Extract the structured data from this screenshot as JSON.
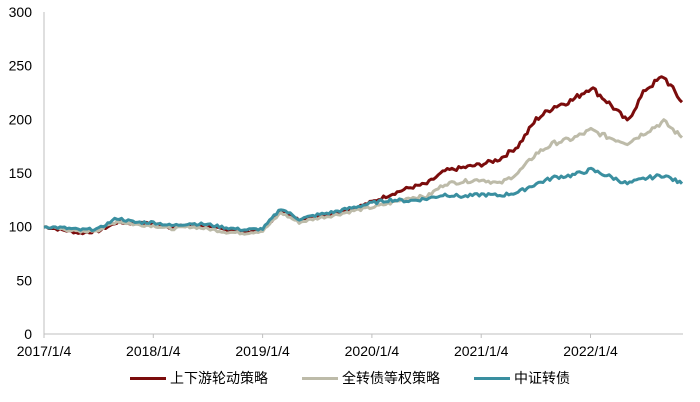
{
  "chart_data": {
    "type": "line",
    "title": "",
    "xlabel": "",
    "ylabel": "",
    "ylim": [
      0,
      300
    ],
    "yticks": [
      0,
      50,
      100,
      150,
      200,
      250,
      300
    ],
    "xtick_labels": [
      "2017/1/4",
      "2018/1/4",
      "2019/1/4",
      "2020/1/4",
      "2021/1/4",
      "2022/1/4"
    ],
    "grid": false,
    "legend_position": "bottom",
    "x": [
      "2017/01",
      "2017/03",
      "2017/05",
      "2017/07",
      "2017/09",
      "2017/11",
      "2018/01",
      "2018/03",
      "2018/05",
      "2018/07",
      "2018/09",
      "2018/11",
      "2019/01",
      "2019/03",
      "2019/05",
      "2019/07",
      "2019/09",
      "2019/11",
      "2020/01",
      "2020/03",
      "2020/05",
      "2020/07",
      "2020/09",
      "2020/11",
      "2021/01",
      "2021/03",
      "2021/05",
      "2021/07",
      "2021/09",
      "2021/11",
      "2022/01",
      "2022/03",
      "2022/05",
      "2022/07",
      "2022/09",
      "2022/11"
    ],
    "series": [
      {
        "name": "上下游轮动策略",
        "color": "#7B0C0C",
        "values": [
          100,
          97,
          94,
          96,
          104,
          103,
          103,
          99,
          102,
          100,
          97,
          95,
          97,
          115,
          106,
          110,
          113,
          117,
          123,
          130,
          136,
          140,
          152,
          155,
          158,
          163,
          175,
          200,
          212,
          218,
          230,
          215,
          198,
          228,
          240,
          216
        ]
      },
      {
        "name": "全转债等权策略",
        "color": "#BDBBA9",
        "values": [
          100,
          98,
          95,
          97,
          105,
          102,
          101,
          98,
          100,
          98,
          95,
          94,
          96,
          113,
          104,
          108,
          111,
          115,
          118,
          122,
          127,
          128,
          140,
          142,
          144,
          140,
          150,
          168,
          178,
          182,
          190,
          183,
          178,
          188,
          198,
          183
        ]
      },
      {
        "name": "中证转债",
        "color": "#3A8FA0",
        "values": [
          100,
          99,
          97,
          98,
          108,
          104,
          104,
          101,
          103,
          102,
          99,
          97,
          98,
          117,
          107,
          111,
          114,
          118,
          122,
          125,
          124,
          126,
          130,
          128,
          130,
          129,
          132,
          140,
          146,
          148,
          153,
          147,
          140,
          145,
          148,
          140
        ]
      }
    ]
  },
  "legend": {
    "items": [
      {
        "label": "上下游轮动策略",
        "color": "#7B0C0C"
      },
      {
        "label": "全转债等权策略",
        "color": "#BDBBA9"
      },
      {
        "label": "中证转债",
        "color": "#3A8FA0"
      }
    ]
  }
}
